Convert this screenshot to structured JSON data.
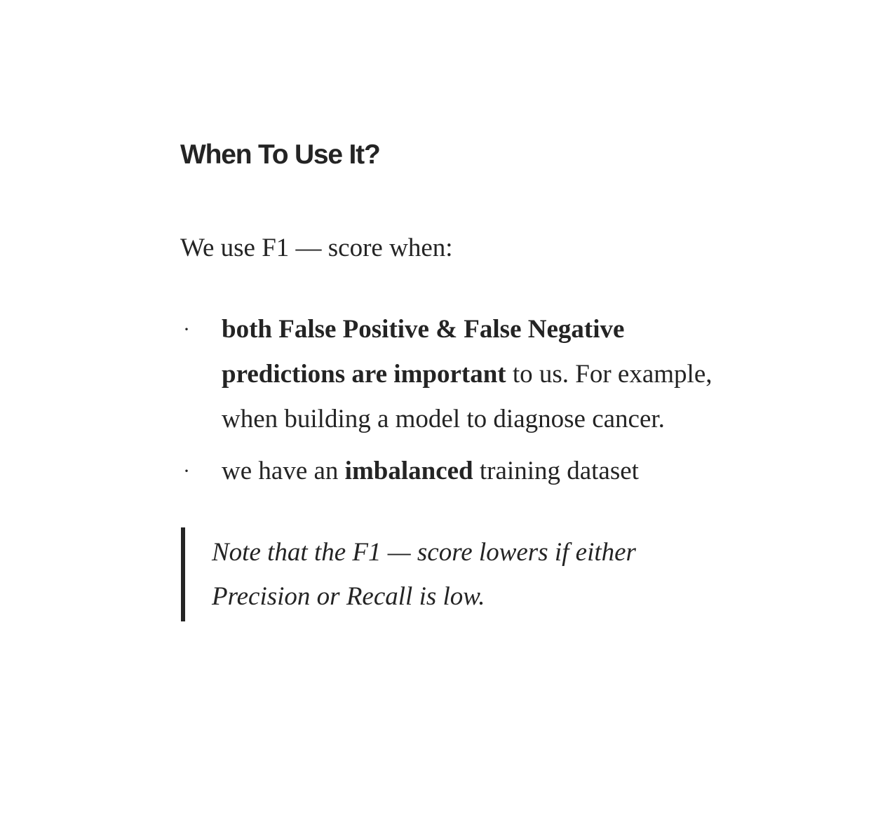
{
  "section": {
    "heading": "When To Use It?",
    "intro": "We use F1 — score when:"
  },
  "bullets": [
    {
      "marker": "·",
      "bold": "both False Positive & False Negative predictions are important",
      "rest": " to us. For example, when building a model to diagnose cancer."
    },
    {
      "marker": "·",
      "pre": "we have an ",
      "bold": "imbalanced",
      "rest": " training dataset"
    }
  ],
  "note": {
    "text": "Note that the F1 — score lowers if either Precision or Recall is low."
  }
}
